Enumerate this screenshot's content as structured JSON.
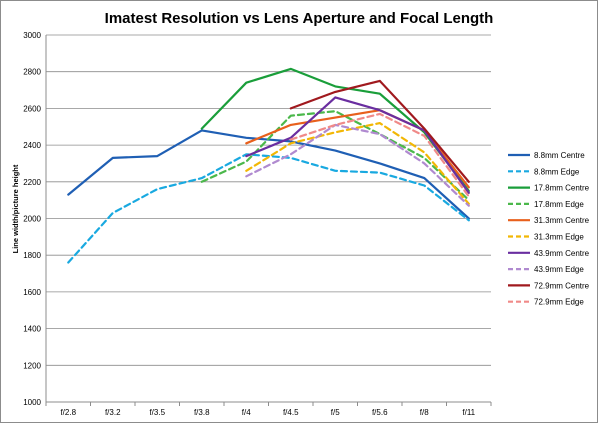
{
  "chart_data": {
    "type": "line",
    "title": "Imatest Resolution vs Lens Aperture and Focal Length",
    "ylabel": "Line width/picture height",
    "xlabel": "",
    "categories": [
      "f/2.8",
      "f/3.2",
      "f/3.5",
      "f/3.8",
      "f/4",
      "f/4.5",
      "f/5",
      "f/5.6",
      "f/8",
      "f/11"
    ],
    "ylim": [
      1000,
      3000
    ],
    "yticks": [
      1000,
      1200,
      1400,
      1600,
      1800,
      2000,
      2200,
      2400,
      2600,
      2800,
      3000
    ],
    "grid": "horizontal",
    "legend_position": "right",
    "series": [
      {
        "name": "8.8mm Centre",
        "color": "#1f5fb4",
        "dashed": false,
        "values": [
          2130,
          2330,
          2340,
          2480,
          2440,
          2420,
          2370,
          2300,
          2220,
          2000
        ]
      },
      {
        "name": "8.8mm Edge",
        "color": "#19a9e0",
        "dashed": true,
        "values": [
          1760,
          2030,
          2160,
          2220,
          2350,
          2330,
          2260,
          2250,
          2180,
          1990
        ]
      },
      {
        "name": "17.8mm Centre",
        "color": "#1a9e3a",
        "dashed": false,
        "values": [
          null,
          null,
          null,
          2490,
          2740,
          2815,
          2720,
          2680,
          2470,
          2150
        ]
      },
      {
        "name": "17.8mm Edge",
        "color": "#4bb84b",
        "dashed": true,
        "values": [
          null,
          null,
          null,
          2200,
          2310,
          2560,
          2585,
          2460,
          2330,
          2100
        ]
      },
      {
        "name": "31.3mm Centre",
        "color": "#e8601c",
        "dashed": false,
        "values": [
          null,
          null,
          null,
          null,
          2410,
          2510,
          2550,
          2590,
          2480,
          2170
        ]
      },
      {
        "name": "31.3mm Edge",
        "color": "#f2b705",
        "dashed": true,
        "values": [
          null,
          null,
          null,
          null,
          2260,
          2410,
          2470,
          2520,
          2360,
          2080
        ]
      },
      {
        "name": "43.9mm Centre",
        "color": "#6a2ea0",
        "dashed": false,
        "values": [
          null,
          null,
          null,
          null,
          2340,
          2440,
          2660,
          2590,
          2480,
          2140
        ]
      },
      {
        "name": "43.9mm Edge",
        "color": "#b08ad0",
        "dashed": true,
        "values": [
          null,
          null,
          null,
          null,
          2230,
          2350,
          2510,
          2460,
          2300,
          2070
        ]
      },
      {
        "name": "72.9mm Centre",
        "color": "#a0191e",
        "dashed": false,
        "values": [
          null,
          null,
          null,
          null,
          null,
          2600,
          2690,
          2750,
          2490,
          2200
        ]
      },
      {
        "name": "72.9mm Edge",
        "color": "#f08a88",
        "dashed": true,
        "values": [
          null,
          null,
          null,
          null,
          null,
          2430,
          2510,
          2570,
          2450,
          2120
        ]
      }
    ]
  }
}
